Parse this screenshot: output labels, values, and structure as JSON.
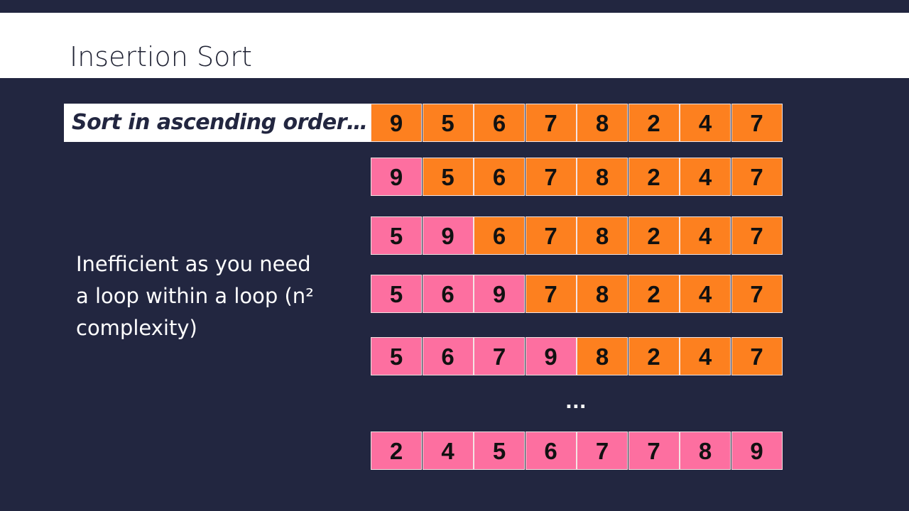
{
  "header": {
    "title": "Insertion Sort"
  },
  "prompt": "Sort in ascending order…",
  "note": [
    "Inefficient as you need",
    "a loop within a loop (n²",
    "complexity)"
  ],
  "sorted_color": "#fd6fa0",
  "unsorted_color": "#fd801f",
  "rows": [
    {
      "cells": [
        9,
        5,
        6,
        7,
        8,
        2,
        4,
        7
      ],
      "sorted": 0
    },
    {
      "cells": [
        9,
        5,
        6,
        7,
        8,
        2,
        4,
        7
      ],
      "sorted": 1
    },
    {
      "cells": [
        5,
        9,
        6,
        7,
        8,
        2,
        4,
        7
      ],
      "sorted": 2
    },
    {
      "cells": [
        5,
        6,
        9,
        7,
        8,
        2,
        4,
        7
      ],
      "sorted": 3
    },
    {
      "cells": [
        5,
        6,
        7,
        9,
        8,
        2,
        4,
        7
      ],
      "sorted": 4
    },
    {
      "cells": [
        2,
        4,
        5,
        6,
        7,
        7,
        8,
        9
      ],
      "sorted": 8
    }
  ],
  "ellipsis": "..."
}
